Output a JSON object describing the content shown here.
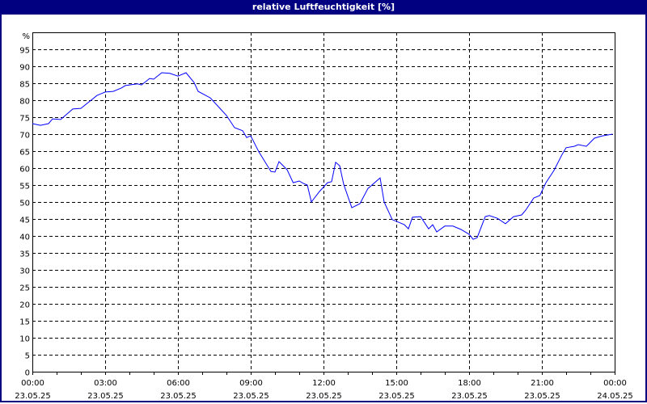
{
  "window": {
    "title": "relative Luftfeuchtigkeit [%]"
  },
  "chart_data": {
    "type": "line",
    "title": "relative Luftfeuchtigkeit [%]",
    "ylabel": "%",
    "ylim": [
      0,
      100
    ],
    "yticks": [
      0,
      5,
      10,
      15,
      20,
      25,
      30,
      35,
      40,
      45,
      50,
      55,
      60,
      65,
      70,
      75,
      80,
      85,
      90,
      95
    ],
    "xlim": [
      "23.05.25 00:00",
      "24.05.25 00:00"
    ],
    "xticks": [
      {
        "time": "00:00",
        "date": "23.05.25"
      },
      {
        "time": "03:00",
        "date": "23.05.25"
      },
      {
        "time": "06:00",
        "date": "23.05.25"
      },
      {
        "time": "09:00",
        "date": "23.05.25"
      },
      {
        "time": "12:00",
        "date": "23.05.25"
      },
      {
        "time": "15:00",
        "date": "23.05.25"
      },
      {
        "time": "18:00",
        "date": "23.05.25"
      },
      {
        "time": "21:00",
        "date": "23.05.25"
      },
      {
        "time": "00:00",
        "date": "24.05.25"
      }
    ],
    "grid": true,
    "line_color": "#0000ff",
    "series": [
      {
        "x": [
          "00:00",
          "00:20",
          "00:40",
          "00:50",
          "01:10",
          "01:40",
          "02:00",
          "02:20",
          "02:40",
          "03:00",
          "03:20",
          "03:40",
          "03:50",
          "04:20",
          "04:30",
          "04:50",
          "05:00",
          "05:20",
          "05:40",
          "06:00",
          "06:20",
          "06:40",
          "06:50",
          "07:20",
          "07:40",
          "08:00",
          "08:20",
          "08:40",
          "08:50",
          "09:00",
          "09:20",
          "09:50",
          "10:00",
          "10:10",
          "10:30",
          "10:45",
          "11:00",
          "11:10",
          "11:20",
          "11:30",
          "11:50",
          "12:10",
          "12:20",
          "12:30",
          "12:40",
          "12:50",
          "13:10",
          "13:30",
          "13:50",
          "14:20",
          "14:30",
          "14:50",
          "15:20",
          "15:30",
          "15:40",
          "16:00",
          "16:20",
          "16:30",
          "16:40",
          "17:00",
          "17:20",
          "17:40",
          "18:00",
          "18:10",
          "18:20",
          "18:40",
          "18:50",
          "19:10",
          "19:30",
          "19:50",
          "20:10",
          "20:20",
          "20:40",
          "20:55",
          "21:10",
          "21:30",
          "21:50",
          "22:00",
          "22:20",
          "22:30",
          "22:50",
          "23:10",
          "23:30",
          "23:55"
        ],
        "y": [
          73.1,
          72.6,
          73.1,
          74.5,
          74.3,
          77.4,
          77.6,
          79.5,
          81.4,
          82.4,
          82.6,
          83.6,
          84.3,
          84.8,
          84.5,
          86.4,
          86.2,
          88.1,
          87.9,
          87.1,
          88.1,
          85.2,
          82.6,
          80.7,
          78.1,
          75.5,
          71.9,
          71.0,
          69.0,
          69.5,
          64.8,
          59.0,
          58.8,
          61.9,
          59.5,
          55.7,
          56.2,
          55.5,
          55.0,
          50.0,
          53.1,
          55.7,
          56.0,
          61.7,
          60.7,
          55.2,
          48.3,
          49.5,
          54.0,
          57.1,
          50.0,
          44.8,
          43.3,
          42.1,
          45.5,
          45.7,
          42.1,
          43.3,
          41.2,
          42.9,
          42.9,
          41.9,
          40.5,
          39.0,
          39.5,
          45.7,
          46.0,
          45.2,
          43.6,
          45.7,
          46.2,
          47.6,
          51.2,
          51.9,
          55.7,
          59.3,
          64.0,
          66.0,
          66.4,
          66.9,
          66.4,
          68.8,
          69.5,
          70.0
        ]
      }
    ]
  }
}
